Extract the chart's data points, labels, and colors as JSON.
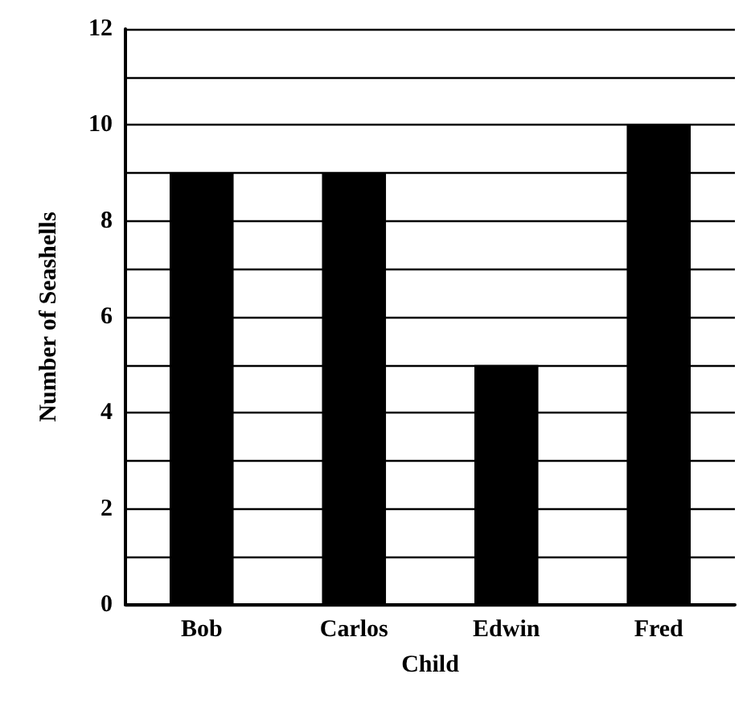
{
  "chart_data": {
    "type": "bar",
    "xlabel": "Child",
    "ylabel": "Number of Seashells",
    "categories": [
      "Bob",
      "Carlos",
      "Edwin",
      "Fred"
    ],
    "values": [
      9,
      9,
      5,
      10
    ],
    "color": "#000000",
    "ylim": [
      0,
      12
    ],
    "yticks": [
      0,
      {
        "value": 1,
        "label": null
      },
      2,
      {
        "value": 3,
        "label": null
      },
      4,
      {
        "value": 5,
        "label": null
      },
      6,
      {
        "value": 7,
        "label": null
      },
      8,
      {
        "value": 9,
        "label": null
      },
      10,
      {
        "value": 11,
        "label": null
      },
      12
    ],
    "grid": true
  }
}
